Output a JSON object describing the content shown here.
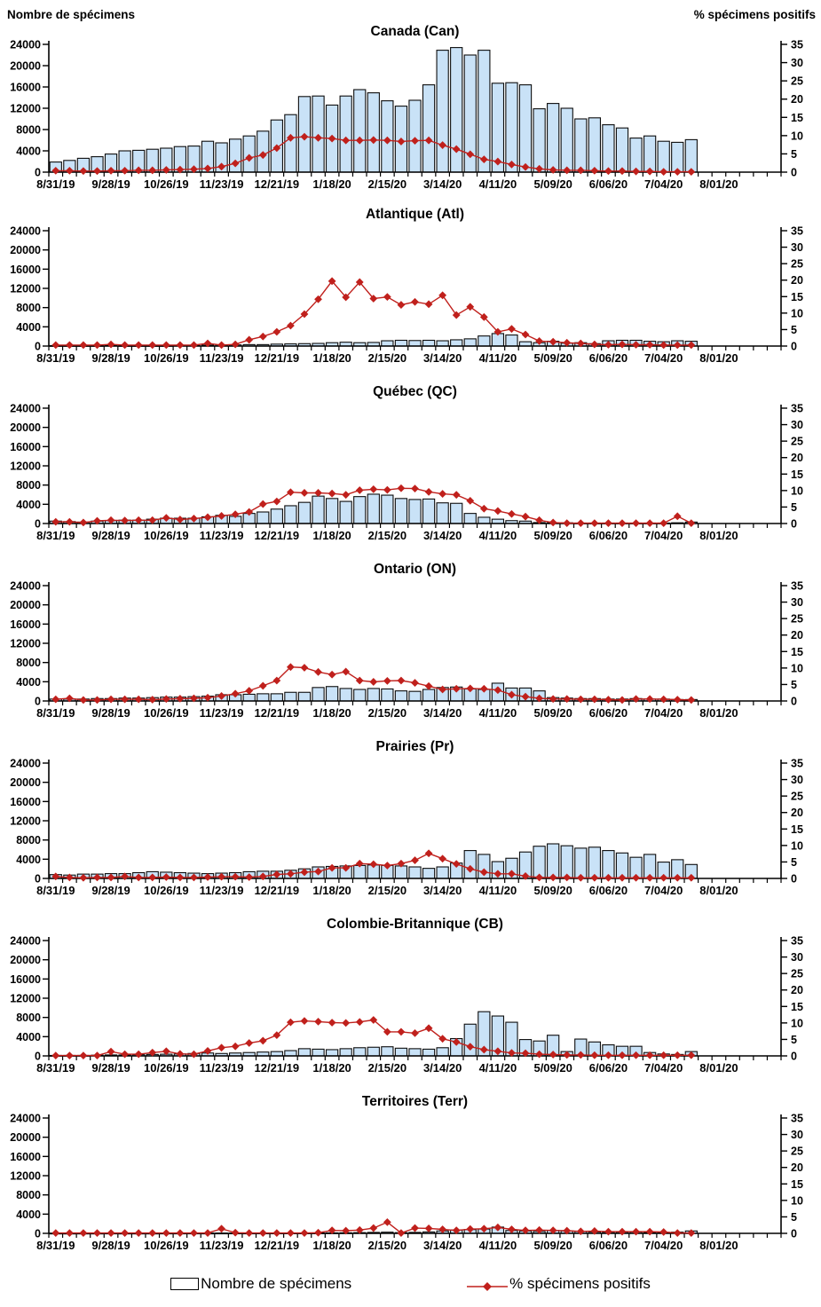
{
  "figure": {
    "left_axis_title": "Nombre de spécimens",
    "right_axis_title": "% spécimens positifs",
    "legend": {
      "bars_label": "Nombre de spécimens",
      "line_label": "% spécimens positifs"
    },
    "colors": {
      "bar_fill": "#c9e2f7",
      "bar_stroke": "#0d0d0d",
      "line": "#c0201c",
      "text": "#000000"
    },
    "y_left": {
      "min": 0,
      "max": 24000,
      "step": 4000,
      "tick_labels": [
        "0",
        "4000",
        "8000",
        "12000",
        "16000",
        "20000",
        "24000"
      ]
    },
    "y_right": {
      "min": 0,
      "max": 35,
      "step": 5,
      "tick_labels": [
        "0",
        "5",
        "10",
        "15",
        "20",
        "25",
        "30",
        "35"
      ]
    },
    "x_axis": {
      "weeks_total": 53,
      "label_every": 4,
      "tick_labels": [
        "8/31/19",
        "9/28/19",
        "10/26/19",
        "11/23/19",
        "12/21/19",
        "1/18/20",
        "2/15/20",
        "3/14/20",
        "4/11/20",
        "5/09/20",
        "6/06/20",
        "7/04/20",
        "8/01/20"
      ]
    }
  },
  "chart_data": [
    {
      "type": "bar+line",
      "title": "Canada (Can)",
      "series": [
        {
          "name": "Nombre de spécimens",
          "axis": "left",
          "values": [
            1900,
            2200,
            2600,
            2900,
            3400,
            4000,
            4100,
            4300,
            4500,
            4800,
            4900,
            5800,
            5500,
            6200,
            6800,
            7700,
            9800,
            10800,
            14200,
            14300,
            12600,
            14300,
            15500,
            14900,
            13400,
            12400,
            13500,
            16400,
            22900,
            23400,
            22000,
            22900,
            16700,
            16800,
            16400,
            11900,
            12900,
            12000,
            10000,
            10200,
            8900,
            8300,
            6400,
            6800,
            5800,
            5600,
            6100
          ]
        },
        {
          "name": "% spécimens positifs",
          "axis": "right",
          "values": [
            0.4,
            0.4,
            0.3,
            0.3,
            0.4,
            0.4,
            0.5,
            0.5,
            0.6,
            0.7,
            0.8,
            1.0,
            1.5,
            2.4,
            3.9,
            4.7,
            6.6,
            9.4,
            9.7,
            9.4,
            9.2,
            8.7,
            8.7,
            8.8,
            8.7,
            8.4,
            8.6,
            8.7,
            7.4,
            6.3,
            4.9,
            3.5,
            2.9,
            2.1,
            1.4,
            0.9,
            0.6,
            0.5,
            0.5,
            0.4,
            0.3,
            0.3,
            0.2,
            0.2,
            0.1,
            0.1,
            0.1
          ]
        }
      ]
    },
    {
      "type": "bar+line",
      "title": "Atlantique (Atl)",
      "series": [
        {
          "name": "Nombre de spécimens",
          "axis": "left",
          "values": [
            100,
            100,
            100,
            100,
            150,
            100,
            100,
            100,
            100,
            150,
            150,
            200,
            250,
            250,
            300,
            300,
            400,
            450,
            500,
            550,
            700,
            800,
            700,
            750,
            1100,
            1200,
            1150,
            1200,
            1100,
            1300,
            1500,
            2100,
            2600,
            2300,
            900,
            700,
            1000,
            600,
            700,
            500,
            1100,
            1200,
            1200,
            1000,
            900,
            1100,
            1000
          ]
        },
        {
          "name": "% spécimens positifs",
          "axis": "right",
          "values": [
            0.3,
            0.3,
            0.3,
            0.3,
            0.5,
            0.3,
            0.3,
            0.3,
            0.3,
            0.3,
            0.3,
            0.8,
            0.3,
            0.5,
            1.9,
            2.9,
            4.3,
            6.2,
            9.7,
            14.2,
            19.7,
            14.8,
            19.4,
            14.4,
            14.9,
            12.5,
            13.4,
            12.7,
            15.4,
            9.4,
            11.9,
            8.8,
            4.3,
            5.2,
            3.5,
            1.5,
            1.3,
            1.0,
            0.8,
            0.5,
            0.4,
            0.5,
            0.4,
            0.4,
            0.3,
            0.3,
            0.3
          ]
        }
      ]
    },
    {
      "type": "bar+line",
      "title": "Québec (QC)",
      "series": [
        {
          "name": "Nombre de spécimens",
          "axis": "left",
          "values": [
            500,
            400,
            300,
            500,
            600,
            700,
            700,
            900,
            1100,
            1100,
            1100,
            1400,
            1700,
            1500,
            2100,
            2400,
            3000,
            3700,
            4400,
            5700,
            5200,
            4600,
            5600,
            6100,
            5900,
            5200,
            5000,
            5100,
            4300,
            4200,
            2100,
            1300,
            900,
            600,
            500,
            200,
            150,
            150,
            100,
            100,
            100,
            100,
            100,
            100,
            100,
            150,
            300
          ]
        },
        {
          "name": "% spécimens positifs",
          "axis": "right",
          "values": [
            0.5,
            0.5,
            0.3,
            0.8,
            1.0,
            0.9,
            1.0,
            1.0,
            1.7,
            1.2,
            1.5,
            1.9,
            2.3,
            2.8,
            3.5,
            5.9,
            6.7,
            9.5,
            9.3,
            9.3,
            9.1,
            8.7,
            10.1,
            10.4,
            10.2,
            10.7,
            10.6,
            9.6,
            9.0,
            8.7,
            6.9,
            4.5,
            3.8,
            2.9,
            2.1,
            1.0,
            0.3,
            0.1,
            0.1,
            0.1,
            0.1,
            0.1,
            0.1,
            0.1,
            0.1,
            2.2,
            0.1
          ]
        }
      ]
    },
    {
      "type": "bar+line",
      "title": "Ontario (ON)",
      "series": [
        {
          "name": "Nombre de spécimens",
          "axis": "left",
          "values": [
            400,
            400,
            400,
            500,
            500,
            600,
            600,
            700,
            800,
            800,
            900,
            1000,
            1300,
            1300,
            1400,
            1500,
            1500,
            1800,
            1800,
            2800,
            3000,
            2600,
            2400,
            2600,
            2500,
            2100,
            2000,
            2400,
            2800,
            2900,
            2500,
            2400,
            3700,
            2700,
            2700,
            2100,
            700,
            600,
            500,
            500,
            400,
            400,
            500,
            400,
            400,
            300,
            300
          ]
        },
        {
          "name": "% spécimens positifs",
          "axis": "right",
          "values": [
            0.5,
            0.8,
            0.3,
            0.3,
            0.5,
            0.5,
            0.5,
            0.4,
            0.6,
            0.7,
            0.8,
            1.0,
            1.5,
            2.2,
            3.1,
            4.6,
            6.2,
            10.3,
            10.1,
            8.8,
            8.0,
            8.9,
            6.2,
            5.8,
            6.1,
            6.2,
            5.5,
            4.5,
            3.5,
            3.7,
            3.8,
            3.7,
            3.3,
            1.9,
            1.3,
            0.8,
            0.6,
            0.6,
            0.5,
            0.5,
            0.4,
            0.3,
            0.6,
            0.6,
            0.5,
            0.4,
            0.3
          ]
        }
      ]
    },
    {
      "type": "bar+line",
      "title": "Prairies (Pr)",
      "series": [
        {
          "name": "Nombre de spécimens",
          "axis": "left",
          "values": [
            800,
            700,
            900,
            900,
            1000,
            1000,
            1200,
            1400,
            1300,
            1200,
            1100,
            1000,
            1100,
            1200,
            1400,
            1500,
            1500,
            1700,
            2000,
            2400,
            2500,
            2600,
            2700,
            2800,
            2700,
            2600,
            2400,
            2100,
            2400,
            3200,
            5800,
            5000,
            3500,
            4200,
            5500,
            6700,
            7200,
            6800,
            6300,
            6500,
            5800,
            5300,
            4400,
            5000,
            3400,
            3900,
            2900
          ]
        },
        {
          "name": "% spécimens positifs",
          "axis": "right",
          "values": [
            0.6,
            0.3,
            0.2,
            0.3,
            0.3,
            0.6,
            0.3,
            0.3,
            0.4,
            0.3,
            0.3,
            0.4,
            0.5,
            0.5,
            0.4,
            0.6,
            1.2,
            1.4,
            1.9,
            2.1,
            3.2,
            3.2,
            4.5,
            4.3,
            3.9,
            4.5,
            5.5,
            7.6,
            6.0,
            4.4,
            2.9,
            1.9,
            1.4,
            1.4,
            0.7,
            0.3,
            0.3,
            0.3,
            0.2,
            0.2,
            0.2,
            0.2,
            0.2,
            0.2,
            0.2,
            0.2,
            0.2
          ]
        }
      ]
    },
    {
      "type": "bar+line",
      "title": "Colombie-Britannique (CB)",
      "series": [
        {
          "name": "Nombre de spécimens",
          "axis": "left",
          "values": [
            100,
            100,
            100,
            150,
            200,
            200,
            250,
            300,
            350,
            400,
            500,
            600,
            500,
            600,
            700,
            800,
            900,
            1100,
            1500,
            1400,
            1300,
            1500,
            1700,
            1800,
            1900,
            1600,
            1500,
            1400,
            1700,
            3600,
            6600,
            9200,
            8300,
            7000,
            3400,
            3100,
            4300,
            900,
            3500,
            2900,
            2300,
            2000,
            2000,
            700,
            400,
            300,
            900
          ]
        },
        {
          "name": "% spécimens positifs",
          "axis": "right",
          "values": [
            0.1,
            0.1,
            0.1,
            0.1,
            1.3,
            0.5,
            0.5,
            1.0,
            1.4,
            0.6,
            0.5,
            1.5,
            2.5,
            2.9,
            3.9,
            4.6,
            6.3,
            10.2,
            10.6,
            10.4,
            10.1,
            10.0,
            10.3,
            10.9,
            7.3,
            7.3,
            6.9,
            8.4,
            5.2,
            4.2,
            2.8,
            1.9,
            1.4,
            0.9,
            0.8,
            0.5,
            0.4,
            0.3,
            0.3,
            0.2,
            0.2,
            0.2,
            0.2,
            0.2,
            0.2,
            0.2,
            0.2
          ]
        }
      ]
    },
    {
      "type": "bar+line",
      "title": "Territoires (Terr)",
      "series": [
        {
          "name": "Nombre de spécimens",
          "axis": "left",
          "values": [
            30,
            20,
            30,
            30,
            40,
            30,
            30,
            30,
            40,
            40,
            50,
            40,
            50,
            60,
            50,
            60,
            60,
            70,
            80,
            90,
            100,
            120,
            150,
            200,
            250,
            150,
            200,
            300,
            500,
            700,
            800,
            900,
            1300,
            600,
            500,
            400,
            600,
            500,
            400,
            300,
            250,
            250,
            300,
            200,
            200,
            250,
            500
          ]
        },
        {
          "name": "% spécimens positifs",
          "axis": "right",
          "values": [
            0.1,
            0.1,
            0.1,
            0.1,
            0.1,
            0.1,
            0.1,
            0.1,
            0.1,
            0.1,
            0.1,
            0.1,
            1.4,
            0.2,
            0.1,
            0.1,
            0.1,
            0.1,
            0.1,
            0.2,
            0.9,
            0.8,
            1.0,
            1.6,
            3.4,
            0.1,
            1.6,
            1.5,
            1.2,
            0.9,
            1.3,
            1.4,
            1.8,
            1.2,
            0.9,
            1.0,
            0.9,
            0.8,
            0.6,
            0.7,
            0.5,
            0.5,
            0.5,
            0.5,
            0.4,
            0.1,
            0.1
          ]
        }
      ]
    }
  ]
}
